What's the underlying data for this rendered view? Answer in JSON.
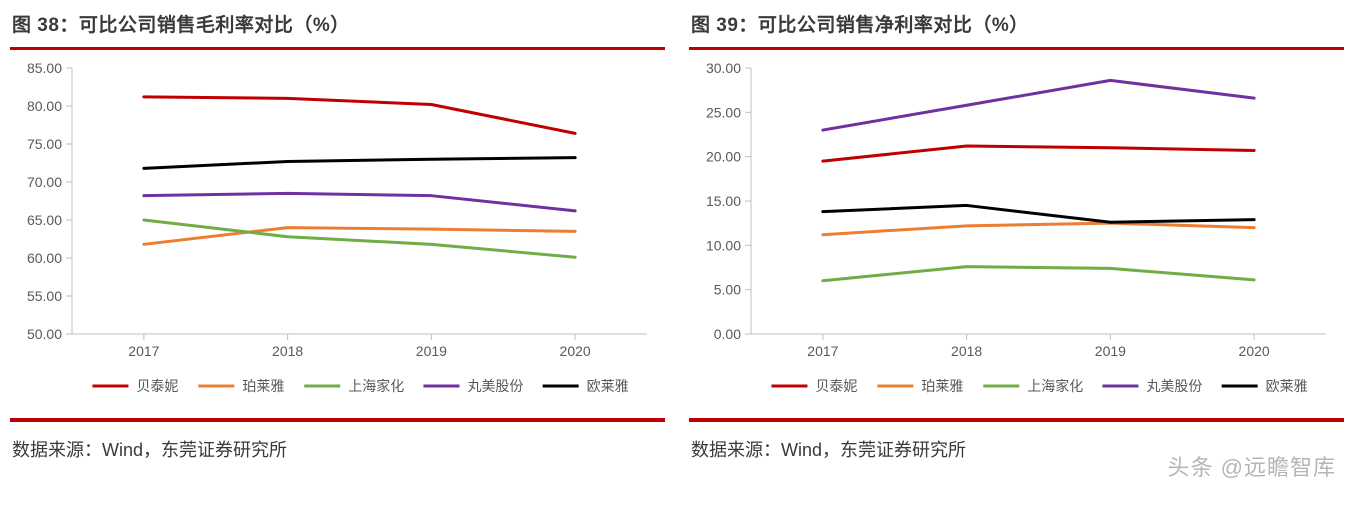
{
  "watermark": "头条 @远瞻智库",
  "left": {
    "title": "图 38：可比公司销售毛利率对比（%）",
    "source": "数据来源：Wind，东莞证券研究所",
    "chart": {
      "type": "line",
      "categories": [
        "2017",
        "2018",
        "2019",
        "2020"
      ],
      "ylim": [
        50,
        85
      ],
      "ytick_step": 5,
      "ytick_decimals": 2,
      "background_color": "#ffffff",
      "grid": false,
      "axis_color": "#bfbfbf",
      "series": [
        {
          "name": "贝泰妮",
          "color": "#c00000",
          "width": 3,
          "values": [
            81.2,
            81.0,
            80.2,
            76.4
          ]
        },
        {
          "name": "珀莱雅",
          "color": "#ed7d31",
          "width": 3,
          "values": [
            61.8,
            64.0,
            63.8,
            63.5
          ]
        },
        {
          "name": "上海家化",
          "color": "#70ad47",
          "width": 3,
          "values": [
            65.0,
            62.8,
            61.8,
            60.1
          ]
        },
        {
          "name": "丸美股份",
          "color": "#7030a0",
          "width": 3,
          "values": [
            68.2,
            68.5,
            68.2,
            66.2
          ]
        },
        {
          "name": "欧莱雅",
          "color": "#000000",
          "width": 3,
          "values": [
            71.8,
            72.7,
            73.0,
            73.2
          ]
        }
      ],
      "legend": {
        "position": "bottom",
        "line_length": 36,
        "font_size": 14
      },
      "label_fontsize": 14
    }
  },
  "right": {
    "title": "图 39：可比公司销售净利率对比（%）",
    "source": "数据来源：Wind，东莞证券研究所",
    "chart": {
      "type": "line",
      "categories": [
        "2017",
        "2018",
        "2019",
        "2020"
      ],
      "ylim": [
        0,
        30
      ],
      "ytick_step": 5,
      "ytick_decimals": 2,
      "background_color": "#ffffff",
      "grid": false,
      "axis_color": "#bfbfbf",
      "series": [
        {
          "name": "贝泰妮",
          "color": "#c00000",
          "width": 3,
          "values": [
            19.5,
            21.2,
            21.0,
            20.7
          ]
        },
        {
          "name": "珀莱雅",
          "color": "#ed7d31",
          "width": 3,
          "values": [
            11.2,
            12.2,
            12.5,
            12.0
          ]
        },
        {
          "name": "上海家化",
          "color": "#70ad47",
          "width": 3,
          "values": [
            6.0,
            7.6,
            7.4,
            6.1
          ]
        },
        {
          "name": "丸美股份",
          "color": "#7030a0",
          "width": 3,
          "values": [
            23.0,
            25.8,
            28.6,
            26.6
          ]
        },
        {
          "name": "欧莱雅",
          "color": "#000000",
          "width": 3,
          "values": [
            13.8,
            14.5,
            12.6,
            12.9
          ]
        }
      ],
      "legend": {
        "position": "bottom",
        "line_length": 36,
        "font_size": 14
      },
      "label_fontsize": 14
    }
  }
}
